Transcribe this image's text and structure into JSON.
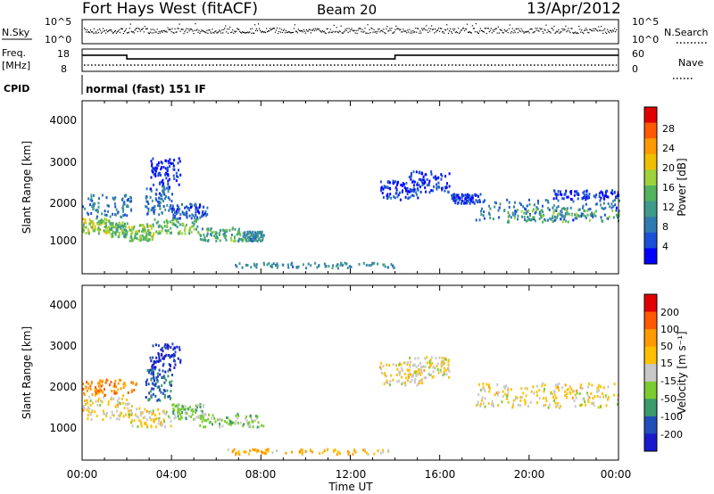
{
  "header": {
    "title": "Fort Hays West (fitACF)",
    "beam": "Beam 20",
    "date": "13/Apr/2012"
  },
  "status_panels": {
    "nsky_label": "N.Sky",
    "nsky_ticks": [
      "10^5",
      "10^0"
    ],
    "nsearch_label": "N.Search",
    "nsearch_ticks": [
      "10^5",
      "10^0"
    ],
    "freq_label_line1": "Freq.",
    "freq_label_line2": "[MHz]",
    "freq_ticks": [
      "18",
      "8"
    ],
    "nave_label": "Nave",
    "nave_ticks": [
      "60",
      "0"
    ],
    "cpid_label": "CPID",
    "cpid_text": "normal (fast) 151 IF",
    "freq_steps": [
      {
        "t_start": 0,
        "t_end": 2.0,
        "level": 0.35
      },
      {
        "t_start": 2.0,
        "t_end": 14.0,
        "level": 0.72
      },
      {
        "t_start": 14.0,
        "t_end": 24.0,
        "level": 0.35
      }
    ]
  },
  "chart_data": [
    {
      "type": "heatmap",
      "name": "power-panel",
      "ylabel": "Slant Range [km]",
      "yticks": [
        "4000",
        "3000",
        "2000",
        "1000"
      ],
      "ylim": [
        0,
        4600
      ],
      "xlim": [
        0,
        24
      ],
      "colorbar": {
        "label": "Power [dB]",
        "tick_labels": [
          "28",
          "24",
          "20",
          "16",
          "12",
          "8",
          "4"
        ],
        "colors": [
          "#0000ff",
          "#1b4fd8",
          "#2f7ab0",
          "#3e9a8a",
          "#52b25e",
          "#9ed23a",
          "#f0c000",
          "#ff9a00",
          "#ff5a00",
          "#e00000"
        ]
      },
      "regions": [
        {
          "t0": 0.0,
          "t1": 1.2,
          "r0": 1100,
          "r1": 1500,
          "v": 0.55
        },
        {
          "t0": 0.0,
          "t1": 2.2,
          "r0": 1500,
          "r1": 2150,
          "v": 0.25
        },
        {
          "t0": 1.2,
          "t1": 2.0,
          "r0": 1000,
          "r1": 1400,
          "v": 0.45
        },
        {
          "t0": 2.0,
          "t1": 3.2,
          "r0": 900,
          "r1": 1350,
          "v": 0.5
        },
        {
          "t0": 2.8,
          "t1": 4.0,
          "r0": 1600,
          "r1": 2400,
          "v": 0.2
        },
        {
          "t0": 3.0,
          "t1": 4.4,
          "r0": 2400,
          "r1": 3100,
          "v": 0.08
        },
        {
          "t0": 3.2,
          "t1": 5.2,
          "r0": 1100,
          "r1": 1500,
          "v": 0.45
        },
        {
          "t0": 4.0,
          "t1": 5.6,
          "r0": 1500,
          "r1": 1900,
          "v": 0.18
        },
        {
          "t0": 5.2,
          "t1": 7.2,
          "r0": 900,
          "r1": 1250,
          "v": 0.4
        },
        {
          "t0": 7.2,
          "t1": 8.1,
          "r0": 900,
          "r1": 1150,
          "v": 0.3
        },
        {
          "t0": 13.3,
          "t1": 15.1,
          "r0": 2000,
          "r1": 2500,
          "v": 0.12
        },
        {
          "t0": 14.6,
          "t1": 16.4,
          "r0": 2200,
          "r1": 2750,
          "v": 0.1
        },
        {
          "t0": 16.5,
          "t1": 17.8,
          "r0": 1900,
          "r1": 2150,
          "v": 0.1
        },
        {
          "t0": 17.6,
          "t1": 24.0,
          "r0": 1450,
          "r1": 2000,
          "v": 0.22
        },
        {
          "t0": 19.0,
          "t1": 24.0,
          "r0": 1400,
          "r1": 1750,
          "v": 0.45
        },
        {
          "t0": 21.0,
          "t1": 24.0,
          "r0": 2000,
          "r1": 2250,
          "v": 0.08
        },
        {
          "t0": 6.5,
          "t1": 14.0,
          "r0": 180,
          "r1": 320,
          "v": 0.3
        }
      ]
    },
    {
      "type": "heatmap",
      "name": "velocity-panel",
      "ylabel": "Slant Range [km]",
      "yticks": [
        "4000",
        "3000",
        "2000",
        "1000"
      ],
      "ylim": [
        0,
        4600
      ],
      "xlim": [
        0,
        24
      ],
      "xlabel": "Time UT",
      "xticks": [
        "00:00",
        "04:00",
        "08:00",
        "12:00",
        "16:00",
        "20:00",
        "00:00"
      ],
      "colorbar": {
        "label": "Velocity [m s⁻¹]",
        "tick_labels": [
          "200",
          "100",
          "50",
          "15",
          "-15",
          "-50",
          "-100",
          "-200"
        ],
        "colors": [
          "#e00000",
          "#ff5a00",
          "#ff9a00",
          "#ffc000",
          "#c8c8c8",
          "#7acc30",
          "#3a9a6a",
          "#1f4fb8",
          "#1a1acc"
        ]
      },
      "regions": [
        {
          "t0": 0.0,
          "t1": 2.2,
          "r0": 1100,
          "r1": 1700,
          "v": 0.45
        },
        {
          "t0": 0.0,
          "t1": 2.4,
          "r0": 1700,
          "r1": 2150,
          "v": 0.25
        },
        {
          "t0": 2.0,
          "t1": 4.0,
          "r0": 900,
          "r1": 1400,
          "v": 0.45
        },
        {
          "t0": 3.0,
          "t1": 4.4,
          "r0": 2400,
          "r1": 3100,
          "v": 0.92
        },
        {
          "t0": 2.8,
          "t1": 4.0,
          "r0": 1600,
          "r1": 2400,
          "v": 0.8
        },
        {
          "t0": 4.0,
          "t1": 5.4,
          "r0": 1100,
          "r1": 1500,
          "v": 0.62
        },
        {
          "t0": 5.2,
          "t1": 8.1,
          "r0": 900,
          "r1": 1250,
          "v": 0.58
        },
        {
          "t0": 13.3,
          "t1": 15.2,
          "r0": 2000,
          "r1": 2600,
          "v": 0.45
        },
        {
          "t0": 14.6,
          "t1": 16.4,
          "r0": 2200,
          "r1": 2750,
          "v": 0.45
        },
        {
          "t0": 17.6,
          "t1": 24.0,
          "r0": 1400,
          "r1": 2050,
          "v": 0.45
        },
        {
          "t0": 6.5,
          "t1": 14.0,
          "r0": 180,
          "r1": 320,
          "v": 0.35
        }
      ]
    }
  ]
}
